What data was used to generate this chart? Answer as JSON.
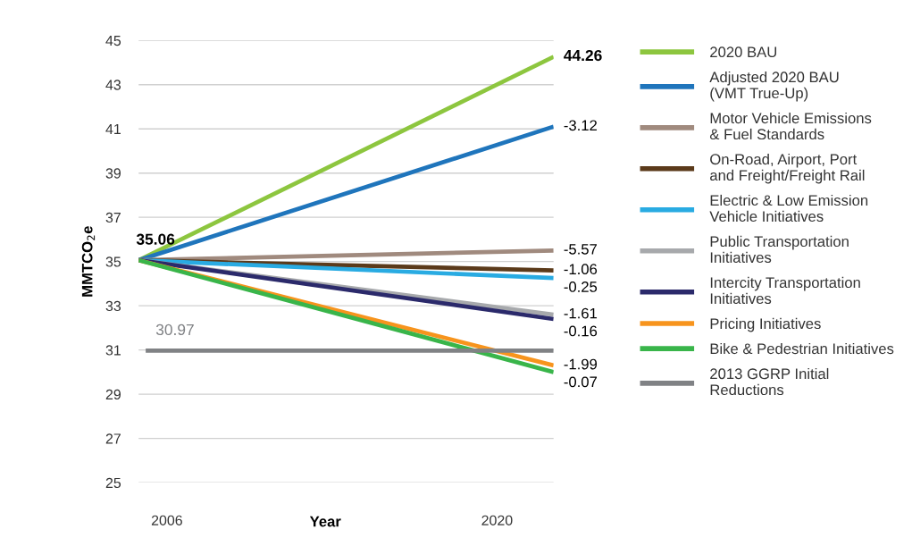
{
  "chart_data": {
    "type": "line",
    "xlabel": "Year",
    "ylabel": "MMTCO$_{2}$e",
    "xlim": [
      2004.8,
      2022.4
    ],
    "xticks": [
      2006,
      2020
    ],
    "ylim": [
      25,
      45
    ],
    "yticks": [
      25,
      27,
      29,
      31,
      33,
      35,
      37,
      39,
      41,
      43,
      45
    ],
    "annotations": [
      "-3.12",
      "-5.57",
      "-1.06",
      "-0.25",
      "-1.61",
      "-0.16",
      "-1.99",
      "-0.07"
    ],
    "grid": "y",
    "legend": "right",
    "marker": "none",
    "line_style": "solid",
    "series": [
      {
        "name": "2020 BAU",
        "color": "#8dc63f",
        "x": [
          2004.8,
          2022.4
        ],
        "values": [
          35.06,
          44.26
        ],
        "value_labels": [
          "35.06",
          "44.26"
        ]
      },
      {
        "name": "Adjusted 2020 BAU\n(VMT True-Up)",
        "color": "#1f75bc",
        "x": [
          2004.8,
          2022.4
        ],
        "values": [
          35.06,
          41.1
        ]
      },
      {
        "name": "Motor Vehicle Emissions\n& Fuel Standards",
        "color": "#a08a7e",
        "x": [
          2004.8,
          2022.4
        ],
        "values": [
          35.06,
          35.5
        ]
      },
      {
        "name": "On-Road, Airport, Port\nand Freight/Freight Rail",
        "color": "#5b3a1a",
        "x": [
          2004.8,
          2022.4
        ],
        "values": [
          35.06,
          34.6
        ]
      },
      {
        "name": "Electric & Low Emission\nVehicle Initiatives",
        "color": "#29abe2",
        "x": [
          2004.8,
          2022.4
        ],
        "values": [
          35.06,
          34.25
        ]
      },
      {
        "name": "Public Transportation\nInitiatives",
        "color": "#a7a9ac",
        "x": [
          2004.8,
          2022.4
        ],
        "values": [
          35.06,
          32.6
        ]
      },
      {
        "name": "Intercity Transportation\nInitiatives",
        "color": "#2b2a6b",
        "x": [
          2004.8,
          2022.4
        ],
        "values": [
          35.06,
          32.4
        ]
      },
      {
        "name": "Pricing Initiatives",
        "color": "#f7941d",
        "x": [
          2004.8,
          2022.4
        ],
        "values": [
          35.06,
          30.3
        ]
      },
      {
        "name": "Bike & Pedestrian Initiatives",
        "color": "#39b54a",
        "x": [
          2004.8,
          2022.4
        ],
        "values": [
          35.06,
          30.0
        ]
      },
      {
        "name": "2013 GGRP Initial\nReductions",
        "color": "#808285",
        "x": [
          2005.1,
          2022.4
        ],
        "values": [
          30.97,
          30.97
        ],
        "value_labels": [
          "30.97",
          null
        ]
      }
    ]
  }
}
